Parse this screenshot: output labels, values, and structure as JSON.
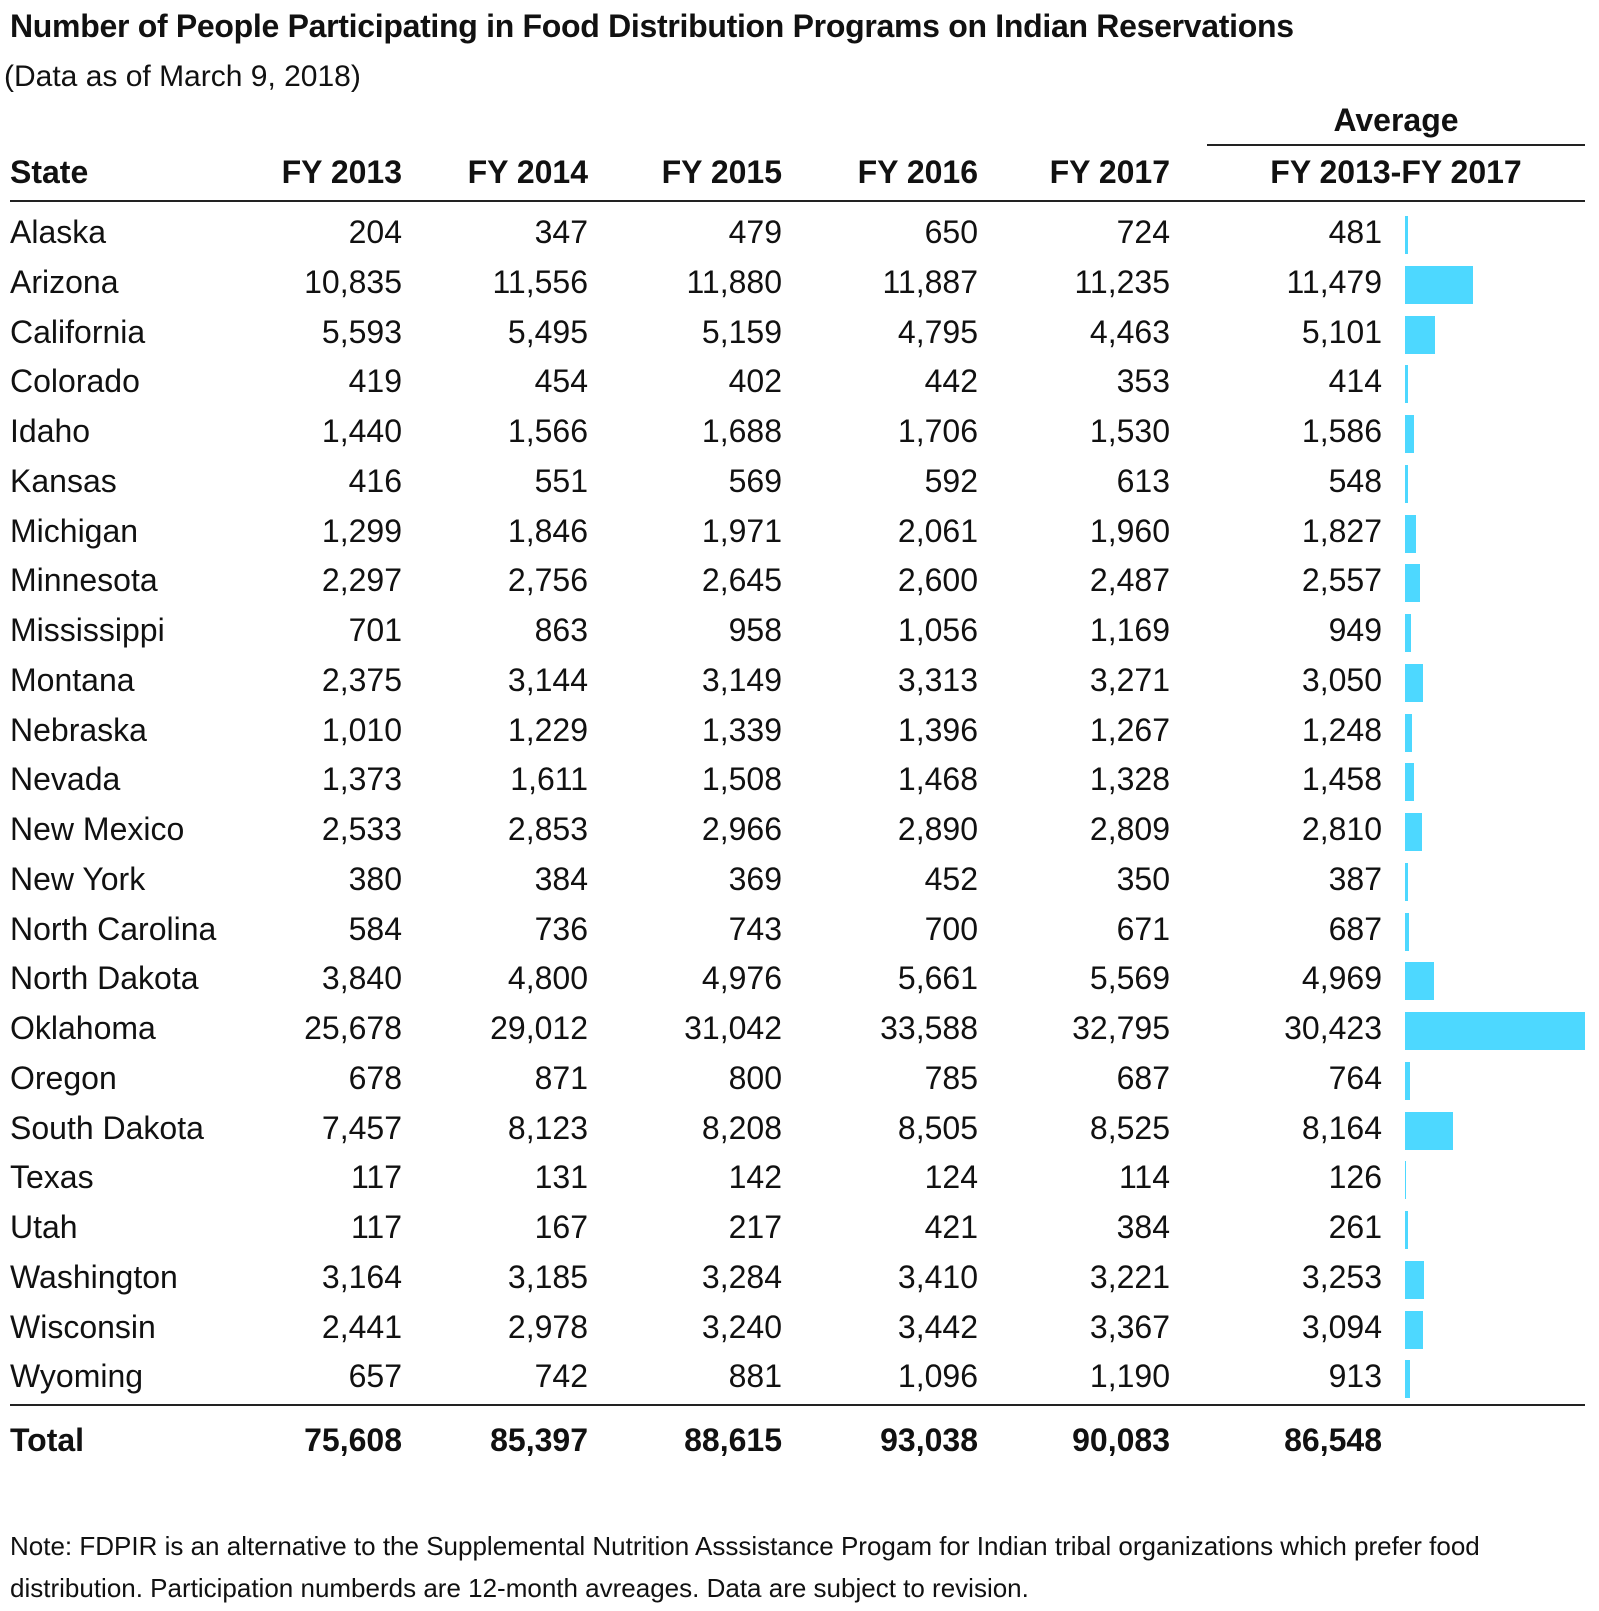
{
  "chart_data": {
    "type": "table",
    "title": "Number of People Participating in Food Distribution Programs on Indian Reservations",
    "subtitle": "(Data as of March 9, 2018)",
    "average_group_label": "Average",
    "columns": [
      "State",
      "FY 2013",
      "FY 2014",
      "FY 2015",
      "FY 2016",
      "FY 2017",
      "FY 2013-FY 2017"
    ],
    "rows": [
      {
        "state": "Alaska",
        "fy2013": "204",
        "fy2014": "347",
        "fy2015": "479",
        "fy2016": "650",
        "fy2017": "724",
        "average": "481",
        "average_value": 481
      },
      {
        "state": "Arizona",
        "fy2013": "10,835",
        "fy2014": "11,556",
        "fy2015": "11,880",
        "fy2016": "11,887",
        "fy2017": "11,235",
        "average": "11,479",
        "average_value": 11479
      },
      {
        "state": "California",
        "fy2013": "5,593",
        "fy2014": "5,495",
        "fy2015": "5,159",
        "fy2016": "4,795",
        "fy2017": "4,463",
        "average": "5,101",
        "average_value": 5101
      },
      {
        "state": "Colorado",
        "fy2013": "419",
        "fy2014": "454",
        "fy2015": "402",
        "fy2016": "442",
        "fy2017": "353",
        "average": "414",
        "average_value": 414
      },
      {
        "state": "Idaho",
        "fy2013": "1,440",
        "fy2014": "1,566",
        "fy2015": "1,688",
        "fy2016": "1,706",
        "fy2017": "1,530",
        "average": "1,586",
        "average_value": 1586
      },
      {
        "state": "Kansas",
        "fy2013": "416",
        "fy2014": "551",
        "fy2015": "569",
        "fy2016": "592",
        "fy2017": "613",
        "average": "548",
        "average_value": 548
      },
      {
        "state": "Michigan",
        "fy2013": "1,299",
        "fy2014": "1,846",
        "fy2015": "1,971",
        "fy2016": "2,061",
        "fy2017": "1,960",
        "average": "1,827",
        "average_value": 1827
      },
      {
        "state": "Minnesota",
        "fy2013": "2,297",
        "fy2014": "2,756",
        "fy2015": "2,645",
        "fy2016": "2,600",
        "fy2017": "2,487",
        "average": "2,557",
        "average_value": 2557
      },
      {
        "state": "Mississippi",
        "fy2013": "701",
        "fy2014": "863",
        "fy2015": "958",
        "fy2016": "1,056",
        "fy2017": "1,169",
        "average": "949",
        "average_value": 949
      },
      {
        "state": "Montana",
        "fy2013": "2,375",
        "fy2014": "3,144",
        "fy2015": "3,149",
        "fy2016": "3,313",
        "fy2017": "3,271",
        "average": "3,050",
        "average_value": 3050
      },
      {
        "state": "Nebraska",
        "fy2013": "1,010",
        "fy2014": "1,229",
        "fy2015": "1,339",
        "fy2016": "1,396",
        "fy2017": "1,267",
        "average": "1,248",
        "average_value": 1248
      },
      {
        "state": "Nevada",
        "fy2013": "1,373",
        "fy2014": "1,611",
        "fy2015": "1,508",
        "fy2016": "1,468",
        "fy2017": "1,328",
        "average": "1,458",
        "average_value": 1458
      },
      {
        "state": "New Mexico",
        "fy2013": "2,533",
        "fy2014": "2,853",
        "fy2015": "2,966",
        "fy2016": "2,890",
        "fy2017": "2,809",
        "average": "2,810",
        "average_value": 2810
      },
      {
        "state": "New York",
        "fy2013": "380",
        "fy2014": "384",
        "fy2015": "369",
        "fy2016": "452",
        "fy2017": "350",
        "average": "387",
        "average_value": 387
      },
      {
        "state": "North Carolina",
        "fy2013": "584",
        "fy2014": "736",
        "fy2015": "743",
        "fy2016": "700",
        "fy2017": "671",
        "average": "687",
        "average_value": 687
      },
      {
        "state": "North Dakota",
        "fy2013": "3,840",
        "fy2014": "4,800",
        "fy2015": "4,976",
        "fy2016": "5,661",
        "fy2017": "5,569",
        "average": "4,969",
        "average_value": 4969
      },
      {
        "state": "Oklahoma",
        "fy2013": "25,678",
        "fy2014": "29,012",
        "fy2015": "31,042",
        "fy2016": "33,588",
        "fy2017": "32,795",
        "average": "30,423",
        "average_value": 30423
      },
      {
        "state": "Oregon",
        "fy2013": "678",
        "fy2014": "871",
        "fy2015": "800",
        "fy2016": "785",
        "fy2017": "687",
        "average": "764",
        "average_value": 764
      },
      {
        "state": "South Dakota",
        "fy2013": "7,457",
        "fy2014": "8,123",
        "fy2015": "8,208",
        "fy2016": "8,505",
        "fy2017": "8,525",
        "average": "8,164",
        "average_value": 8164
      },
      {
        "state": "Texas",
        "fy2013": "117",
        "fy2014": "131",
        "fy2015": "142",
        "fy2016": "124",
        "fy2017": "114",
        "average": "126",
        "average_value": 126
      },
      {
        "state": "Utah",
        "fy2013": "117",
        "fy2014": "167",
        "fy2015": "217",
        "fy2016": "421",
        "fy2017": "384",
        "average": "261",
        "average_value": 261
      },
      {
        "state": "Washington",
        "fy2013": "3,164",
        "fy2014": "3,185",
        "fy2015": "3,284",
        "fy2016": "3,410",
        "fy2017": "3,221",
        "average": "3,253",
        "average_value": 3253
      },
      {
        "state": "Wisconsin",
        "fy2013": "2,441",
        "fy2014": "2,978",
        "fy2015": "3,240",
        "fy2016": "3,442",
        "fy2017": "3,367",
        "average": "3,094",
        "average_value": 3094
      },
      {
        "state": "Wyoming",
        "fy2013": "657",
        "fy2014": "742",
        "fy2015": "881",
        "fy2016": "1,096",
        "fy2017": "1,190",
        "average": "913",
        "average_value": 913
      }
    ],
    "total": {
      "state": "Total",
      "fy2013": "75,608",
      "fy2014": "85,397",
      "fy2015": "88,615",
      "fy2016": "93,038",
      "fy2017": "90,083",
      "average": "86,548"
    },
    "bar_color": "#4dd8ff",
    "bar_max_value": 30423
  },
  "note": "Note: FDPIR is an alternative to the Supplemental Nutrition Asssistance Progam for Indian tribal organizations which prefer food distribution. Participation numberds are 12-month avreages. Data are subject to revision."
}
